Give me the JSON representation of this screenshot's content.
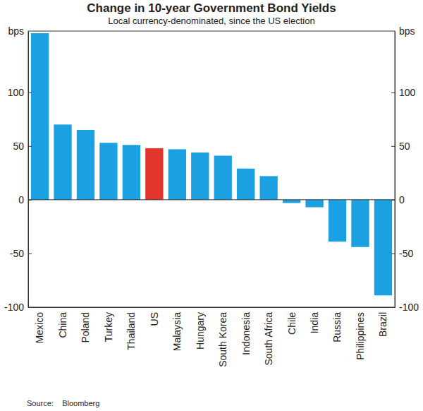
{
  "chart_data": {
    "type": "bar",
    "title": "Change in 10-year Government Bond Yields",
    "subtitle": "Local currency-denominated, since the US election",
    "ylabel": "bps",
    "source": "Source:    Bloomberg",
    "categories": [
      "Mexico",
      "China",
      "Poland",
      "Turkey",
      "Thailand",
      "US",
      "Malaysia",
      "Hungary",
      "South Korea",
      "Indonesia",
      "South Africa",
      "Chile",
      "India",
      "Russia",
      "Philippines",
      "Brazil"
    ],
    "values": [
      155,
      70,
      65,
      53,
      51,
      48,
      47,
      44,
      41,
      29,
      22,
      -3,
      -7,
      -39,
      -44,
      -89
    ],
    "colors": [
      "#1ba1e2",
      "#1ba1e2",
      "#1ba1e2",
      "#1ba1e2",
      "#1ba1e2",
      "#e2352b",
      "#1ba1e2",
      "#1ba1e2",
      "#1ba1e2",
      "#1ba1e2",
      "#1ba1e2",
      "#1ba1e2",
      "#1ba1e2",
      "#1ba1e2",
      "#1ba1e2",
      "#1ba1e2"
    ],
    "ylim": [
      -100,
      157
    ],
    "yticks": [
      -100,
      -50,
      0,
      50,
      100
    ],
    "grid": false
  }
}
